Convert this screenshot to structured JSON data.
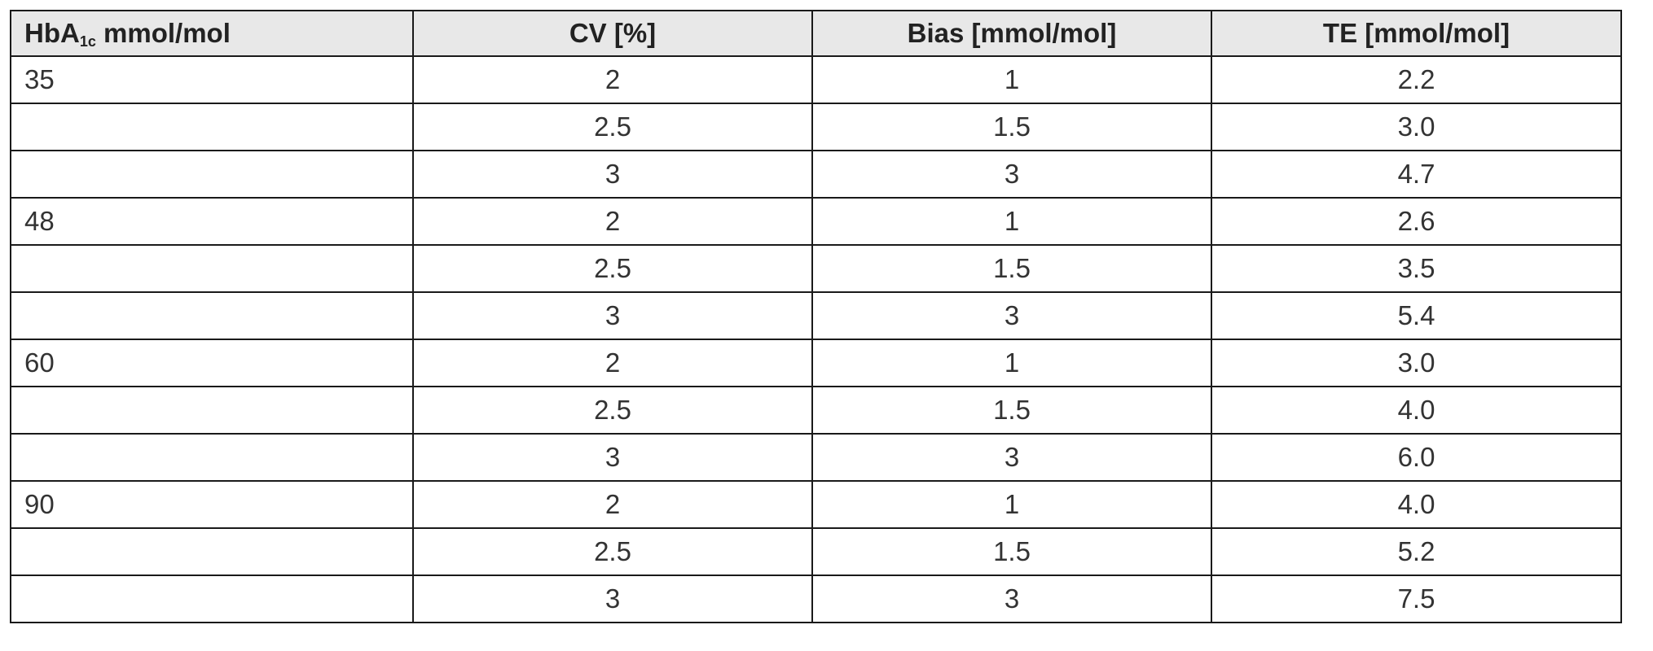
{
  "table": {
    "headers": {
      "hba1c_prefix": "HbA",
      "hba1c_sub": "1c",
      "hba1c_suffix": " mmol/mol",
      "cv": "CV [%]",
      "bias": "Bias [mmol/mol]",
      "te": "TE [mmol/mol]"
    },
    "rows": [
      {
        "hba1c": "35",
        "cv": "2",
        "bias": "1",
        "te": "2.2"
      },
      {
        "hba1c": "",
        "cv": "2.5",
        "bias": "1.5",
        "te": "3.0"
      },
      {
        "hba1c": "",
        "cv": "3",
        "bias": "3",
        "te": "4.7"
      },
      {
        "hba1c": "48",
        "cv": "2",
        "bias": "1",
        "te": "2.6"
      },
      {
        "hba1c": "",
        "cv": "2.5",
        "bias": "1.5",
        "te": "3.5"
      },
      {
        "hba1c": "",
        "cv": "3",
        "bias": "3",
        "te": "5.4"
      },
      {
        "hba1c": "60",
        "cv": "2",
        "bias": "1",
        "te": "3.0"
      },
      {
        "hba1c": "",
        "cv": "2.5",
        "bias": "1.5",
        "te": "4.0"
      },
      {
        "hba1c": "",
        "cv": "3",
        "bias": "3",
        "te": "6.0"
      },
      {
        "hba1c": "90",
        "cv": "2",
        "bias": "1",
        "te": "4.0"
      },
      {
        "hba1c": "",
        "cv": "2.5",
        "bias": "1.5",
        "te": "5.2"
      },
      {
        "hba1c": "",
        "cv": "3",
        "bias": "3",
        "te": "7.5"
      }
    ]
  }
}
